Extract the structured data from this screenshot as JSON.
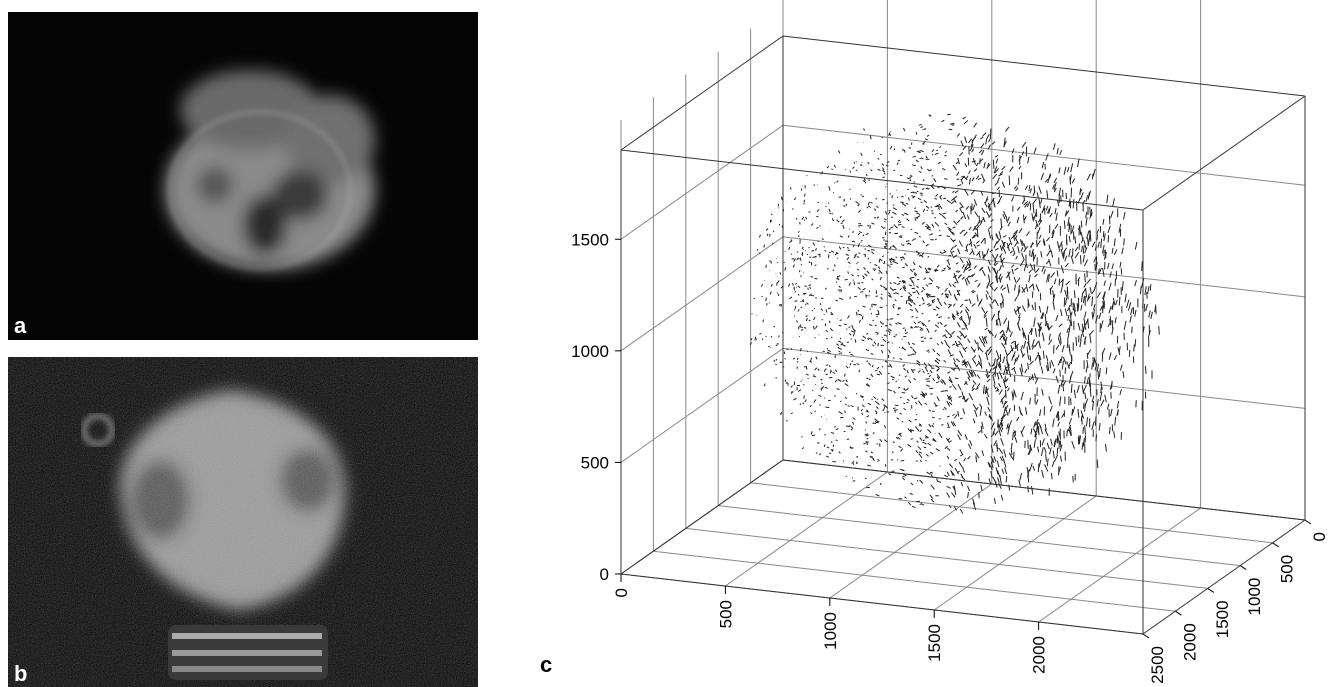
{
  "panels": {
    "a": {
      "label": "a"
    },
    "b": {
      "label": "b"
    }
  },
  "chart_data": {
    "type": "vector3d",
    "label": "c",
    "xlim": [
      0,
      2500
    ],
    "xticks": [
      0,
      500,
      1000,
      1500,
      2000
    ],
    "ylim": [
      2500,
      0
    ],
    "yticks": [
      2500,
      2000,
      1500,
      1000,
      500,
      0
    ],
    "zlim": [
      0,
      1900
    ],
    "zticks": [
      0,
      500,
      1000,
      1500
    ],
    "grid": true
  }
}
